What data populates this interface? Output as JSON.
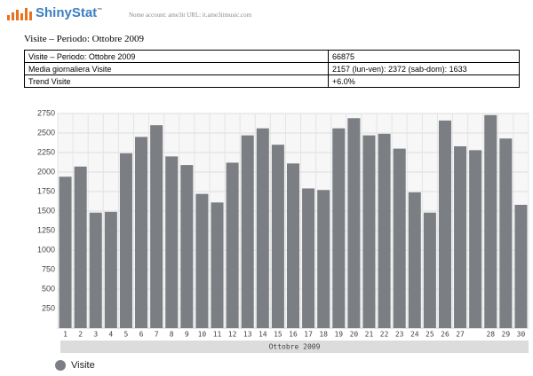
{
  "header": {
    "logo": "ShinyStat",
    "trademark": "™",
    "account": "Nome account: ame3it   URL: it.ame3itmusic.com"
  },
  "heading": "Visite – Periodo: Ottobre 2009",
  "table": {
    "rows": [
      [
        "Visite – Periodo: Ottobre 2009",
        "66875"
      ],
      [
        "Media giornaliera Visite",
        "2157   (lun-ven): 2372   (sab-dom): 1633"
      ],
      [
        "Trend Visite",
        "+6.0%"
      ]
    ]
  },
  "chart_data": {
    "type": "bar",
    "x_label": "Ottobre 2009",
    "categories": [
      "1",
      "2",
      "3",
      "4",
      "5",
      "6",
      "7",
      "8",
      "9",
      "10",
      "11",
      "12",
      "13",
      "14",
      "15",
      "16",
      "17",
      "18",
      "19",
      "20",
      "21",
      "22",
      "23",
      "24",
      "25",
      "26",
      "27",
      null,
      "28",
      "29",
      "30"
    ],
    "series": [
      {
        "name": "Visite",
        "color": "#7b7e83",
        "values": [
          1940,
          2070,
          1480,
          1490,
          2240,
          2450,
          2600,
          2200,
          2090,
          1720,
          1610,
          2120,
          2470,
          2560,
          2350,
          2110,
          1790,
          1770,
          2560,
          2690,
          2470,
          2490,
          2300,
          1740,
          1480,
          2660,
          2330,
          2280,
          2730,
          2430,
          1580
        ]
      }
    ],
    "ylim": [
      0,
      2750
    ],
    "yticks": [
      250,
      500,
      750,
      1000,
      1250,
      1500,
      1750,
      2000,
      2250,
      2500,
      2750
    ],
    "grid": true
  }
}
